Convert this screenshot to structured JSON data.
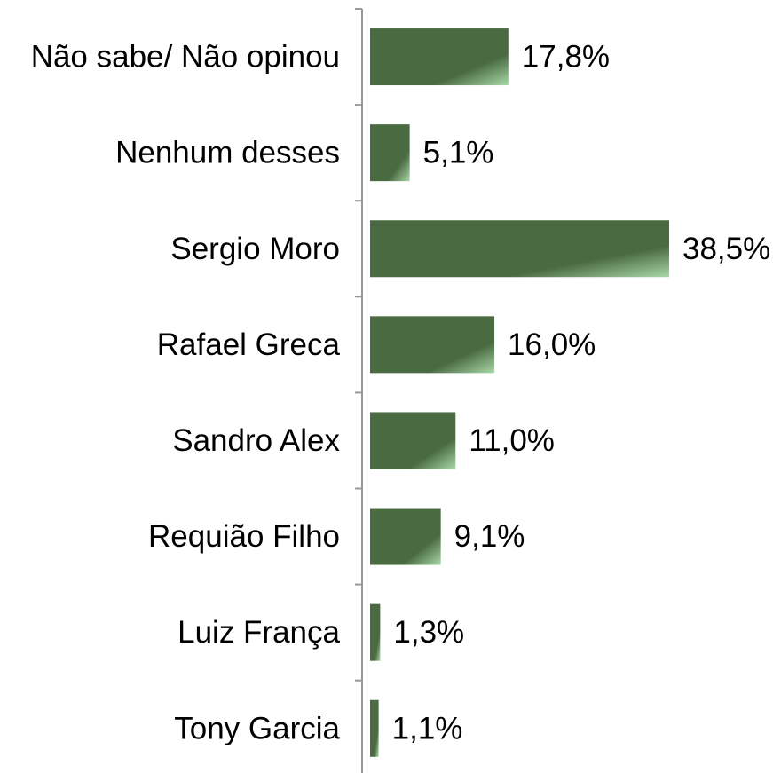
{
  "chart_data": {
    "type": "bar",
    "orientation": "horizontal",
    "categories": [
      "Não sabe/ Não opinou",
      "Nenhum desses",
      "Sergio Moro",
      "Rafael Greca",
      "Sandro Alex",
      "Requião Filho",
      "Luiz França",
      "Tony Garcia"
    ],
    "values": [
      17.8,
      5.1,
      38.5,
      16.0,
      11.0,
      9.1,
      1.3,
      1.1
    ],
    "value_labels": [
      "17,8%",
      "5,1%",
      "38,5%",
      "16,0%",
      "11,0%",
      "9,1%",
      "1,3%",
      "1,1%"
    ],
    "unit": "%",
    "xlim": [
      0,
      38.5
    ],
    "grid": false,
    "legend": "none",
    "colors": {
      "bar_dark": "#4a6a42",
      "bar_light": "#a8d8a8",
      "axis": "#999999",
      "text": "#000000"
    }
  }
}
